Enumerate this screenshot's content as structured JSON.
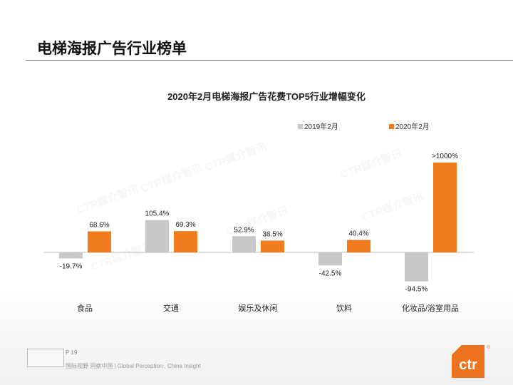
{
  "page": {
    "title": "电梯海报广告行业榜单",
    "page_number": "P 19",
    "slogan": "国际视野  洞察中国 | Global Perception , China Insight",
    "logo": "ctr",
    "watermark": "CTR媒介智讯"
  },
  "colors": {
    "series_2019": "#c8c8c8",
    "series_2020": "#f07c1e",
    "logo": "#ec7420"
  },
  "chart_data": {
    "type": "bar",
    "title": "2020年2月电梯海报广告花费TOP5行业增幅变化",
    "categories": [
      "食品",
      "交通",
      "娱乐及休闲",
      "饮料",
      "化妆品/浴室用品"
    ],
    "series": [
      {
        "name": "2019年2月",
        "values": [
          -19.7,
          105.4,
          52.9,
          -42.5,
          -94.5
        ],
        "labels": [
          "-19.7%",
          "105.4%",
          "52.9%",
          "-42.5%",
          "-94.5%"
        ]
      },
      {
        "name": "2020年2月",
        "values": [
          68.6,
          69.3,
          38.5,
          40.4,
          1000
        ],
        "labels": [
          "68.6%",
          "69.3%",
          "38.5%",
          "40.4%",
          ">1000%"
        ]
      }
    ],
    "unit": "%",
    "legend": "top-right",
    "grid": false
  }
}
